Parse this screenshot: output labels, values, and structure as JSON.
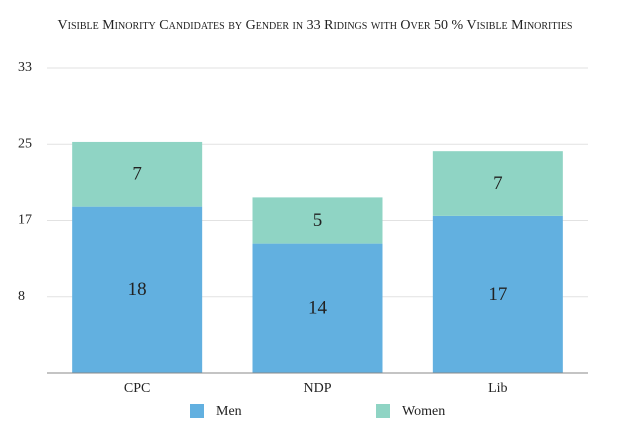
{
  "chart_data": {
    "type": "stacked-bar",
    "title": "Visible Minority Candidates by Gender in 33 Ridings with Over 50 % Visible Minorities",
    "categories": [
      "CPC",
      "NDP",
      "Lib"
    ],
    "series": [
      {
        "name": "Men",
        "color": "#62b0e0",
        "values": [
          18,
          14,
          17
        ]
      },
      {
        "name": "Women",
        "color": "#8fd4c4",
        "values": [
          7,
          5,
          7
        ]
      }
    ],
    "ylim": [
      0,
      33
    ],
    "yticks": [
      {
        "value": 8.25,
        "label": "8"
      },
      {
        "value": 16.5,
        "label": "17"
      },
      {
        "value": 24.75,
        "label": "25"
      },
      33
    ],
    "grid": true,
    "legend": "bottom"
  }
}
